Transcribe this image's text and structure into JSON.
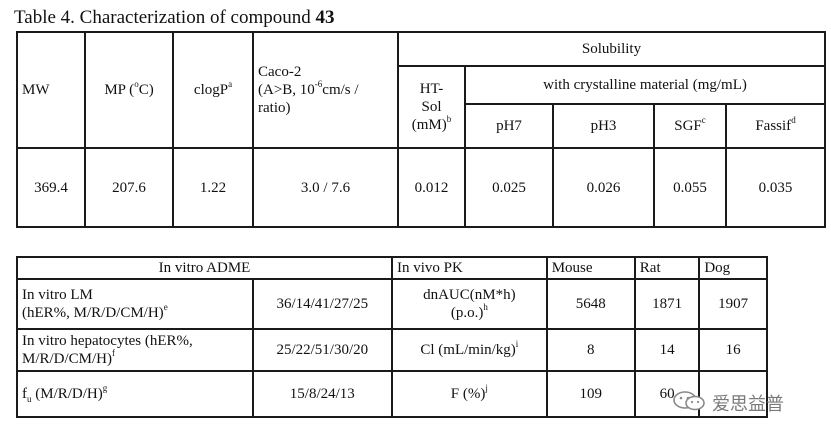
{
  "caption": {
    "prefix": "Table 4. Characterization of compound ",
    "compound": "43"
  },
  "table1": {
    "headers": {
      "mw": "MW",
      "mp_pre": "MP (",
      "mp_sup": "o",
      "mp_post": "C)",
      "clogp": "clogP",
      "clogp_sup": "a",
      "caco_line1": "Caco-2",
      "caco_line2_pre": "(A>B, 10",
      "caco_sup": "-6",
      "caco_line2_post": "cm/s /",
      "caco_line3": "ratio)",
      "solubility": "Solubility",
      "htsol_line1": "HT-",
      "htsol_line2": "Sol",
      "htsol_line3": "(mM)",
      "htsol_sup": "b",
      "crystalline": "with crystalline material (mg/mL)",
      "ph7": "pH7",
      "ph3": "pH3",
      "sgf": "SGF",
      "sgf_sup": "c",
      "fassif": "Fassif",
      "fassif_sup": "d"
    },
    "values": {
      "mw": "369.4",
      "mp": "207.6",
      "clogp": "1.22",
      "caco": "3.0 / 7.6",
      "htsol": "0.012",
      "ph7": "0.025",
      "ph3": "0.026",
      "sgf": "0.055",
      "fassif": "0.035"
    }
  },
  "table2": {
    "headers": {
      "adme": "In vitro ADME",
      "pk": "In  vivo PK",
      "mouse": "Mouse",
      "rat": "Rat",
      "dog": "Dog"
    },
    "rows": [
      {
        "label_line1": "In vitro LM",
        "label_line2": "(hER%, M/R/D/CM/H)",
        "label_sup": "e",
        "value": "36/14/41/27/25",
        "pk_line1": "dnAUC(nM*h)",
        "pk_line2": "(p.o.)",
        "pk_sup": "h",
        "mouse": "5648",
        "rat": "1871",
        "dog": "1907"
      },
      {
        "label_line1": "In  vitro  hepatocytes  (hER%,",
        "label_line2": "M/R/D/CM/H)",
        "label_sup": "f",
        "value": "25/22/51/30/20",
        "pk_line1": "Cl (mL/min/kg)",
        "pk_sup": "i",
        "mouse": "8",
        "rat": "14",
        "dog": "16"
      },
      {
        "label_pre": "f",
        "label_sub": "u",
        "label_line1": " (M/R/D/H)",
        "label_sup": "g",
        "value": "15/8/24/13",
        "pk_line1": "F (%)",
        "pk_sup": "j",
        "mouse": "109",
        "rat": "60",
        "dog": ""
      }
    ]
  },
  "watermark": {
    "text": "爱思益普",
    "logo": "wechat-logo-icon"
  }
}
